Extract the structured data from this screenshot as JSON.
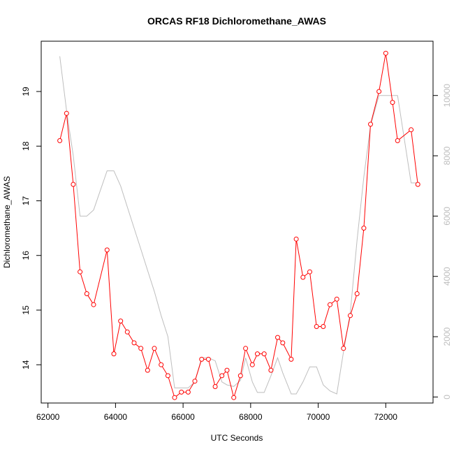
{
  "chart_data": {
    "type": "line",
    "title": "ORCAS RF18 Dichloromethane_AWAS",
    "xlabel": "UTC Seconds",
    "ylabel": "Dichloromethane_AWAS",
    "xlim": [
      61800,
      73400
    ],
    "ylim": [
      13.3,
      19.92
    ],
    "y2lim": [
      -200,
      11800
    ],
    "x_ticks": [
      62000,
      64000,
      66000,
      68000,
      70000,
      72000
    ],
    "y_ticks": [
      14,
      15,
      16,
      17,
      18,
      19
    ],
    "y2_ticks": [
      0,
      2000,
      4000,
      6000,
      8000,
      10000
    ],
    "colors": {
      "primary": "#ff0000",
      "secondary": "#bebebe",
      "axis": "#000000"
    },
    "series": [
      {
        "axis": "left",
        "style": "line+points",
        "x": [
          62350,
          62550,
          62750,
          62950,
          63150,
          63350,
          63750,
          63950,
          64150,
          64350,
          64550,
          64750,
          64950,
          65150,
          65350,
          65550,
          65750,
          65950,
          66150,
          66350,
          66550,
          66750,
          66950,
          67150,
          67300,
          67500,
          67700,
          67850,
          68050,
          68200,
          68400,
          68600,
          68800,
          68950,
          69200,
          69350,
          69550,
          69750,
          69950,
          70150,
          70350,
          70550,
          70750,
          70950,
          71150,
          71350,
          71550,
          71800,
          72000,
          72200,
          72350,
          72750,
          72950
        ],
        "y": [
          18.1,
          18.6,
          17.3,
          15.7,
          15.3,
          15.1,
          16.1,
          14.2,
          14.8,
          14.6,
          14.4,
          14.3,
          13.9,
          14.3,
          14.0,
          13.8,
          13.4,
          13.5,
          13.5,
          13.7,
          14.1,
          14.1,
          13.6,
          13.8,
          13.9,
          13.4,
          13.8,
          14.3,
          14.0,
          14.2,
          14.2,
          13.9,
          14.5,
          14.4,
          14.1,
          16.3,
          15.6,
          15.7,
          14.7,
          14.7,
          15.1,
          15.2,
          14.3,
          14.9,
          15.3,
          16.5,
          18.4,
          19.0,
          19.7,
          18.8,
          18.1,
          18.3,
          17.3
        ]
      },
      {
        "axis": "right",
        "style": "line",
        "x": [
          62350,
          62550,
          62750,
          62950,
          63150,
          63350,
          63750,
          63950,
          64150,
          64350,
          64550,
          64750,
          64950,
          65150,
          65350,
          65550,
          65750,
          65950,
          66150,
          66350,
          66550,
          66750,
          66950,
          67150,
          67300,
          67500,
          67700,
          67850,
          68050,
          68200,
          68400,
          68600,
          68800,
          68950,
          69200,
          69350,
          69550,
          69750,
          69950,
          70150,
          70350,
          70550,
          70750,
          70950,
          71150,
          71350,
          71550,
          71800,
          72000,
          72200,
          72350,
          72750,
          72950
        ],
        "y": [
          11300,
          9500,
          8000,
          6000,
          6000,
          6200,
          7500,
          7500,
          7000,
          6300,
          5600,
          4900,
          4200,
          3500,
          2700,
          2000,
          300,
          300,
          300,
          500,
          1300,
          1300,
          1200,
          500,
          400,
          350,
          550,
          1300,
          500,
          150,
          150,
          700,
          1300,
          800,
          100,
          100,
          500,
          1000,
          1000,
          400,
          200,
          100,
          1500,
          2800,
          5200,
          7300,
          9000,
          10000,
          10000,
          10000,
          10000,
          7100,
          7100
        ]
      }
    ]
  }
}
